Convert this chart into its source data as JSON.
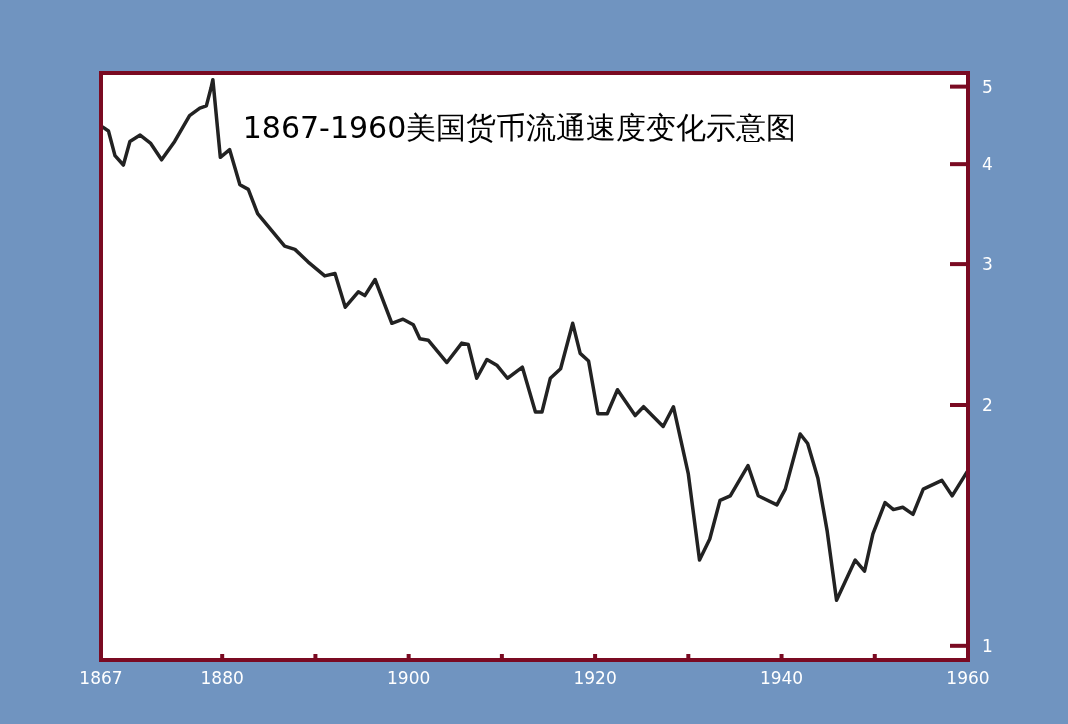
{
  "chart_data": {
    "type": "line",
    "title": "1867-1960美国货币流通速度变化示意图",
    "log": "y",
    "color": "#222222",
    "x": [
      1867.2,
      1867.8,
      1868.5,
      1869.4,
      1870.1,
      1871.2,
      1872.3,
      1873.5,
      1874.9,
      1876.5,
      1877.6,
      1878.3,
      1878.8,
      1879.0,
      1879.8,
      1880.8,
      1881.9,
      1882.8,
      1883.8,
      1886.7,
      1887.8,
      1889.2,
      1891.0,
      1892.1,
      1893.2,
      1894.6,
      1895.3,
      1896.4,
      1898.2,
      1899.4,
      1900.5,
      1901.2,
      1902.1,
      1904.1,
      1905.7,
      1906.4,
      1907.3,
      1908.4,
      1909.5,
      1910.6,
      1912.2,
      1913.6,
      1914.3,
      1915.2,
      1916.3,
      1917.6,
      1918.4,
      1919.3,
      1920.3,
      1921.3,
      1922.4,
      1924.3,
      1925.2,
      1927.3,
      1928.4,
      1930.0,
      1931.2,
      1932.3,
      1933.4,
      1934.5,
      1936.4,
      1937.5,
      1939.5,
      1940.4,
      1942.0,
      1942.8,
      1943.9,
      1944.9,
      1945.9,
      1947.9,
      1948.9,
      1949.8,
      1951.1,
      1952.0,
      1953.0,
      1954.1,
      1955.2,
      1957.2,
      1958.3,
      1959.9
    ],
    "values": [
      4.45,
      4.4,
      4.1,
      3.99,
      4.27,
      4.35,
      4.25,
      4.05,
      4.27,
      4.6,
      4.7,
      4.73,
      4.98,
      5.1,
      4.08,
      4.17,
      3.77,
      3.72,
      3.47,
      3.16,
      3.13,
      3.02,
      2.9,
      2.92,
      2.65,
      2.77,
      2.74,
      2.87,
      2.53,
      2.56,
      2.52,
      2.42,
      2.41,
      2.26,
      2.39,
      2.38,
      2.16,
      2.28,
      2.24,
      2.16,
      2.23,
      1.96,
      1.96,
      2.16,
      2.22,
      2.53,
      2.32,
      2.27,
      1.95,
      1.95,
      2.09,
      1.94,
      1.99,
      1.88,
      1.99,
      1.64,
      1.28,
      1.36,
      1.52,
      1.54,
      1.68,
      1.54,
      1.5,
      1.57,
      1.84,
      1.79,
      1.62,
      1.39,
      1.14,
      1.28,
      1.24,
      1.38,
      1.51,
      1.48,
      1.49,
      1.46,
      1.57,
      1.61,
      1.54,
      1.65
    ],
    "xlim": [
      1867,
      1960
    ],
    "xticks": [
      1867,
      1880,
      {
        "value": 1890,
        "label": null
      },
      1900,
      {
        "value": 1910,
        "label": null
      },
      1920,
      {
        "value": 1930,
        "label": null
      },
      1940,
      {
        "value": 1950,
        "label": null
      },
      1960
    ],
    "ylim": [
      0.96,
      5.2
    ],
    "yticks": [
      1,
      2,
      3,
      4,
      5
    ]
  }
}
